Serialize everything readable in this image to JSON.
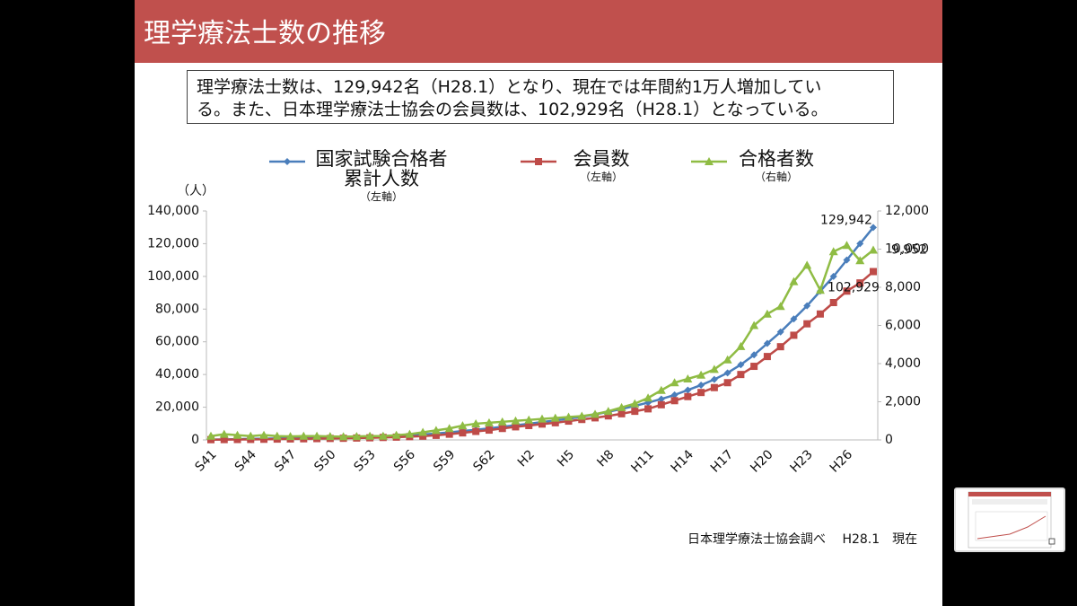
{
  "slide_title": "理学療法士数の推移",
  "summary": [
    "理学療法士数は、129,942名（H28.1）となり、現在では年間約1万人増加してい",
    "る。また、日本理学療法士協会の会員数は、102,929名（H28.1）となっている。"
  ],
  "source": "日本理学療法士協会調べ　 H28.1　現在",
  "chart_data": {
    "type": "line",
    "y_unit": "（人）",
    "categories": [
      "S41",
      null,
      null,
      "S44",
      null,
      null,
      "S47",
      null,
      null,
      "S50",
      null,
      null,
      "S53",
      null,
      null,
      "S56",
      null,
      null,
      "S59",
      null,
      null,
      "S62",
      null,
      null,
      "H2",
      null,
      null,
      "H5",
      null,
      null,
      "H8",
      null,
      null,
      "H11",
      null,
      null,
      "H14",
      null,
      null,
      "H17",
      null,
      null,
      "H20",
      null,
      null,
      "H23",
      null,
      null,
      "H26",
      null,
      null
    ],
    "series": [
      {
        "name": "国家試験合格者累計人数",
        "axis_note": "（左軸）",
        "color": "#4a7ebb",
        "marker": "diamond",
        "values": [
          180,
          300,
          450,
          600,
          750,
          900,
          1050,
          1200,
          1350,
          1500,
          1700,
          1900,
          2100,
          2300,
          2600,
          2900,
          3300,
          3900,
          4600,
          5400,
          6200,
          7100,
          8000,
          8900,
          9900,
          10900,
          11900,
          13000,
          14200,
          15600,
          17200,
          18900,
          20800,
          22800,
          25000,
          27500,
          30500,
          33500,
          37000,
          41000,
          46000,
          52000,
          59000,
          66000,
          74000,
          82000,
          91000,
          100000,
          110000,
          120000,
          129942
        ],
        "value_labels": [
          null,
          null,
          null,
          null,
          null,
          null,
          null,
          null,
          null,
          null,
          null,
          null,
          null,
          null,
          null,
          null,
          null,
          null,
          null,
          null,
          null,
          null,
          null,
          null,
          null,
          null,
          null,
          null,
          null,
          null,
          null,
          null,
          null,
          null,
          null,
          null,
          null,
          null,
          null,
          null,
          null,
          null,
          null,
          null,
          null,
          null,
          null,
          null,
          null,
          null,
          "129,942"
        ]
      },
      {
        "name": "会員数",
        "axis_note": "（左軸）",
        "color": "#be4b48",
        "marker": "square",
        "values": [
          150,
          200,
          250,
          300,
          400,
          500,
          600,
          700,
          800,
          900,
          1000,
          1150,
          1300,
          1500,
          1700,
          2000,
          2300,
          2800,
          3500,
          4300,
          5200,
          6000,
          7000,
          8000,
          8800,
          9700,
          10500,
          11500,
          12500,
          13500,
          14700,
          16000,
          17500,
          19000,
          21500,
          24000,
          26500,
          29000,
          32000,
          35000,
          40000,
          45000,
          51000,
          57000,
          64000,
          71000,
          77000,
          84000,
          91000,
          96000,
          102929
        ],
        "value_labels": [
          null,
          null,
          null,
          null,
          null,
          null,
          null,
          null,
          null,
          null,
          null,
          null,
          null,
          null,
          null,
          null,
          null,
          null,
          null,
          null,
          null,
          null,
          null,
          null,
          null,
          null,
          null,
          null,
          null,
          null,
          null,
          null,
          null,
          null,
          null,
          null,
          null,
          null,
          null,
          null,
          null,
          null,
          null,
          null,
          null,
          null,
          null,
          null,
          null,
          null,
          "102,929"
        ]
      },
      {
        "name": "合格者数",
        "axis_note": "（右軸）",
        "color": "#8fbc44",
        "marker": "triangle",
        "axis": "y2",
        "values": [
          200,
          300,
          250,
          200,
          250,
          200,
          180,
          200,
          200,
          180,
          170,
          180,
          200,
          200,
          250,
          300,
          400,
          500,
          600,
          750,
          850,
          900,
          950,
          1000,
          1050,
          1100,
          1150,
          1200,
          1250,
          1350,
          1500,
          1700,
          1900,
          2200,
          2600,
          3000,
          3200,
          3400,
          3700,
          4200,
          4900,
          6000,
          6600,
          7000,
          8300,
          9160,
          7850,
          9870,
          10200,
          9400,
          9952
        ],
        "value_labels": [
          null,
          null,
          null,
          null,
          null,
          null,
          null,
          null,
          null,
          null,
          null,
          null,
          null,
          null,
          null,
          null,
          null,
          null,
          null,
          null,
          null,
          null,
          null,
          null,
          null,
          null,
          null,
          null,
          null,
          null,
          null,
          null,
          null,
          null,
          null,
          null,
          null,
          null,
          null,
          null,
          null,
          null,
          null,
          null,
          null,
          null,
          null,
          null,
          null,
          null,
          "9,952"
        ]
      }
    ],
    "ylim": [
      0,
      140000
    ],
    "yticks": [
      0,
      {
        "value": 20000,
        "label": "20,000"
      },
      {
        "value": 40000,
        "label": "40,000"
      },
      {
        "value": 60000,
        "label": "60,000"
      },
      {
        "value": 80000,
        "label": "80,000"
      },
      {
        "value": 100000,
        "label": "100,000"
      },
      {
        "value": 120000,
        "label": "120,000"
      },
      {
        "value": 140000,
        "label": "140,000"
      }
    ],
    "y2lim": [
      0,
      12000
    ],
    "y2ticks": [
      0,
      {
        "value": 2000,
        "label": "2,000"
      },
      {
        "value": 4000,
        "label": "4,000"
      },
      {
        "value": 6000,
        "label": "6,000"
      },
      {
        "value": 8000,
        "label": "8,000"
      },
      {
        "value": 10000,
        "label": "10,000"
      },
      {
        "value": 12000,
        "label": "12,000"
      }
    ],
    "grid": false
  }
}
